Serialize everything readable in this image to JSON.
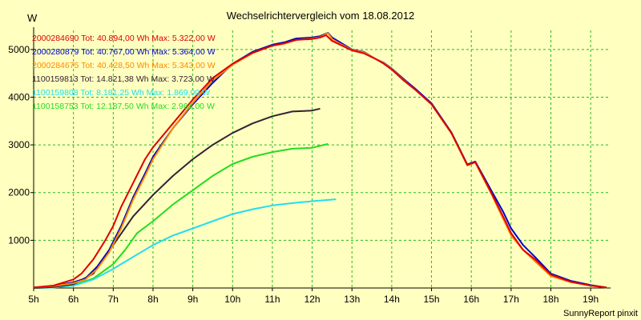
{
  "chart_data": {
    "type": "line",
    "title": "Wechselrichtervergleich vom 18.08.2012",
    "unit_label": "W",
    "footer": "SunnyReport pinxit",
    "colors": {
      "background": "#ffffc0",
      "grid": "#22bb22",
      "axis": "#000000"
    },
    "grid": true,
    "legend_position": "top-left",
    "xlim": [
      5,
      19.5
    ],
    "ylim": [
      0,
      5400
    ],
    "x_ticks": [
      {
        "value": 5,
        "label": "5h"
      },
      {
        "value": 6,
        "label": "6h"
      },
      {
        "value": 7,
        "label": "7h"
      },
      {
        "value": 8,
        "label": "8h"
      },
      {
        "value": 9,
        "label": "9h"
      },
      {
        "value": 10,
        "label": "10h"
      },
      {
        "value": 11,
        "label": "11h"
      },
      {
        "value": 12,
        "label": "12h"
      },
      {
        "value": 13,
        "label": "13h"
      },
      {
        "value": 14,
        "label": "14h"
      },
      {
        "value": 15,
        "label": "15h"
      },
      {
        "value": 16,
        "label": "16h"
      },
      {
        "value": 17,
        "label": "17h"
      },
      {
        "value": 18,
        "label": "18h"
      },
      {
        "value": 19,
        "label": "19h"
      }
    ],
    "y_ticks": [
      {
        "value": 1000,
        "label": "1000"
      },
      {
        "value": 2000,
        "label": "2000"
      },
      {
        "value": 3000,
        "label": "3000"
      },
      {
        "value": 4000,
        "label": "4000"
      },
      {
        "value": 5000,
        "label": "5000"
      }
    ],
    "series": [
      {
        "name": "2000284690",
        "legend": "2000284690 Tot: 40.894,00 Wh Max: 5.322,00 W",
        "color": "#dd0000",
        "x": [
          5.0,
          5.5,
          6.0,
          6.2,
          6.5,
          6.8,
          7.0,
          7.2,
          7.5,
          7.8,
          8.0,
          8.5,
          9.0,
          9.5,
          10.0,
          10.5,
          11.0,
          11.3,
          11.6,
          12.0,
          12.2,
          12.35,
          12.5,
          12.7,
          13.0,
          13.3,
          13.6,
          13.8,
          14.0,
          14.3,
          14.6,
          15.0,
          15.5,
          15.9,
          16.1,
          16.5,
          16.8,
          17.0,
          17.3,
          17.6,
          18.0,
          18.5,
          19.0,
          19.4
        ],
        "y": [
          10,
          50,
          180,
          300,
          600,
          1000,
          1300,
          1700,
          2200,
          2700,
          2950,
          3450,
          3950,
          4400,
          4700,
          4930,
          5080,
          5130,
          5200,
          5220,
          5250,
          5300,
          5180,
          5100,
          4980,
          4920,
          4800,
          4700,
          4580,
          4350,
          4150,
          3850,
          3250,
          2580,
          2640,
          2000,
          1500,
          1150,
          800,
          600,
          280,
          130,
          50,
          10
        ]
      },
      {
        "name": "2000280879",
        "legend": "2000280879 Tot: 40.767,00 Wh Max: 5.364,00 W",
        "color": "#0000cc",
        "x": [
          5.0,
          5.5,
          6.0,
          6.3,
          6.6,
          6.9,
          7.2,
          7.5,
          7.8,
          8.0,
          8.5,
          9.0,
          9.5,
          10.0,
          10.5,
          11.0,
          11.3,
          11.6,
          12.0,
          12.2,
          12.4,
          12.5,
          12.7,
          13.0,
          13.3,
          13.6,
          13.8,
          14.0,
          14.3,
          14.6,
          15.0,
          15.5,
          15.9,
          16.1,
          16.5,
          16.8,
          17.0,
          17.3,
          17.6,
          18.0,
          18.5,
          19.0,
          19.4
        ],
        "y": [
          10,
          40,
          120,
          200,
          450,
          800,
          1300,
          1900,
          2400,
          2750,
          3350,
          3850,
          4300,
          4700,
          4950,
          5100,
          5150,
          5230,
          5250,
          5280,
          5350,
          5250,
          5150,
          5000,
          4950,
          4800,
          4720,
          4600,
          4380,
          4170,
          3870,
          3260,
          2590,
          2650,
          2050,
          1600,
          1250,
          900,
          650,
          300,
          150,
          60,
          10
        ]
      },
      {
        "name": "2000284675",
        "legend": "2000284675 Tot: 40.428,50 Wh Max: 5.343,00 W",
        "color": "#ff8800",
        "x": [
          5.0,
          5.5,
          6.0,
          6.3,
          6.6,
          6.9,
          7.2,
          7.5,
          7.8,
          8.0,
          8.5,
          9.0,
          9.5,
          10.0,
          10.5,
          11.0,
          11.3,
          11.6,
          12.0,
          12.2,
          12.4,
          12.5,
          12.7,
          13.0,
          13.3,
          13.6,
          13.8,
          14.0,
          14.3,
          14.6,
          15.0,
          15.5,
          15.9,
          16.1,
          16.5,
          16.8,
          17.0,
          17.3,
          17.6,
          18.0,
          18.5,
          19.0,
          19.4
        ],
        "y": [
          10,
          40,
          100,
          180,
          400,
          750,
          1250,
          1850,
          2350,
          2700,
          3350,
          3880,
          4350,
          4680,
          4920,
          5080,
          5120,
          5200,
          5230,
          5260,
          5343,
          5220,
          5120,
          4990,
          4940,
          4800,
          4710,
          4590,
          4360,
          4150,
          3850,
          3240,
          2570,
          2630,
          1980,
          1450,
          1100,
          800,
          560,
          250,
          120,
          50,
          10
        ]
      },
      {
        "name": "1100159813",
        "legend": "1100159813 Tot: 14.821,38 Wh Max: 3.723,00 W",
        "color": "#332233",
        "x": [
          5.0,
          5.5,
          6.0,
          6.5,
          7.0,
          7.5,
          8.0,
          8.5,
          9.0,
          9.5,
          10.0,
          10.5,
          11.0,
          11.5,
          12.0,
          12.2
        ],
        "y": [
          0,
          20,
          80,
          300,
          900,
          1500,
          1950,
          2350,
          2700,
          3000,
          3250,
          3450,
          3600,
          3700,
          3720,
          3760
        ]
      },
      {
        "name": "1100159808",
        "legend": "1100159808 Tot: 8.181,25 Wh Max: 1.869,00 W",
        "color": "#22ddee",
        "x": [
          5.0,
          5.5,
          6.0,
          6.5,
          7.0,
          7.5,
          8.0,
          8.5,
          9.0,
          9.5,
          10.0,
          10.5,
          11.0,
          11.5,
          12.0,
          12.6
        ],
        "y": [
          0,
          10,
          50,
          180,
          400,
          650,
          900,
          1100,
          1250,
          1400,
          1550,
          1650,
          1730,
          1780,
          1820,
          1860
        ]
      },
      {
        "name": "1100158753",
        "legend": "1100158753 Tot: 12.187,50 Wh Max: 2.961,00 W",
        "color": "#22dd22",
        "x": [
          5.0,
          5.5,
          6.0,
          6.5,
          7.0,
          7.3,
          7.6,
          8.0,
          8.5,
          9.0,
          9.5,
          10.0,
          10.5,
          11.0,
          11.5,
          12.0,
          12.4
        ],
        "y": [
          0,
          10,
          60,
          200,
          500,
          800,
          1150,
          1400,
          1750,
          2050,
          2350,
          2600,
          2750,
          2850,
          2920,
          2940,
          3020
        ]
      }
    ]
  }
}
